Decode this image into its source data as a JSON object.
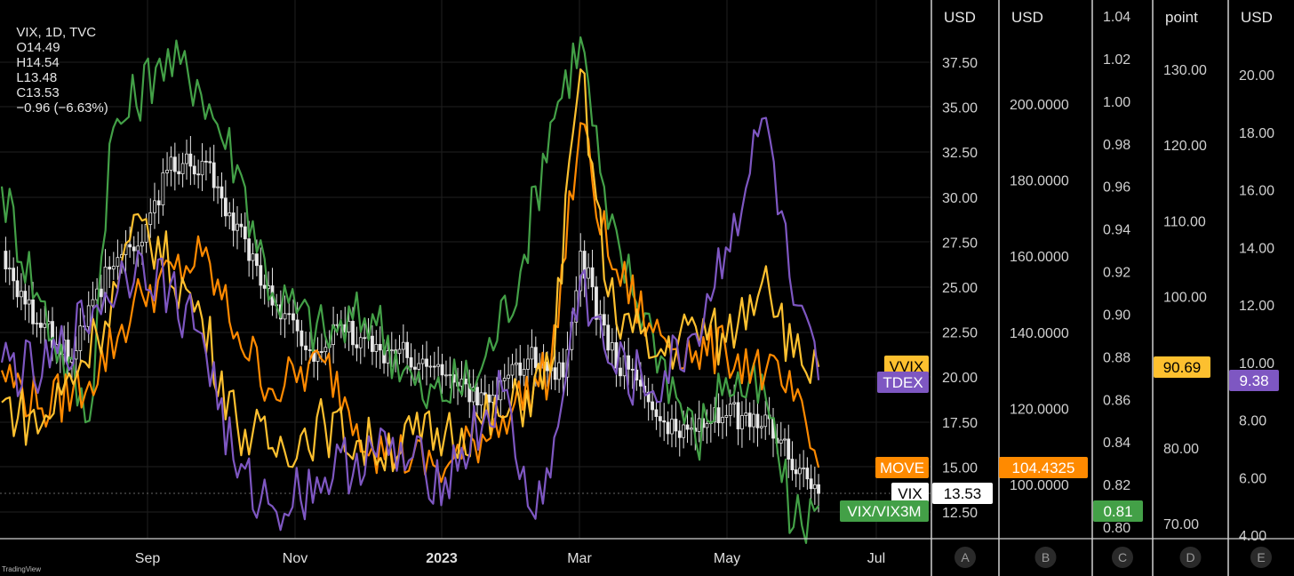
{
  "header": {
    "symbol": "VIX, 1D, TVC",
    "open": "O14.49",
    "high": "H14.54",
    "low": "L13.48",
    "close": "C13.53",
    "change": "−0.96 (−6.63%)"
  },
  "watermark": "TradingView",
  "colors": {
    "background": "#000000",
    "grid": "#1f1f1f",
    "vix": "#ffffff",
    "ratio": "#43a047",
    "move": "#ff8a00",
    "vvix": "#fdc02f",
    "tdex": "#7e57c2"
  },
  "scales": [
    {
      "id": "A",
      "unit": "USD",
      "ticks": [
        "37.50",
        "35.00",
        "32.50",
        "30.00",
        "27.50",
        "25.00",
        "22.50",
        "20.00",
        "17.50",
        "15.00",
        "12.50"
      ]
    },
    {
      "id": "B",
      "unit": "USD",
      "ticks": [
        "200.0000",
        "180.0000",
        "160.0000",
        "140.0000",
        "120.0000",
        "100.0000"
      ]
    },
    {
      "id": "C",
      "unit": "",
      "ticks": [
        "1.04",
        "1.02",
        "1.00",
        "0.98",
        "0.96",
        "0.94",
        "0.92",
        "0.90",
        "0.88",
        "0.86",
        "0.84",
        "0.82",
        "0.80"
      ]
    },
    {
      "id": "D",
      "unit": "point",
      "ticks": [
        "130.00",
        "120.00",
        "110.00",
        "100.00",
        "90.00",
        "80.00",
        "70.00"
      ]
    },
    {
      "id": "E",
      "unit": "USD",
      "ticks": [
        "20.00",
        "18.00",
        "16.00",
        "14.00",
        "12.00",
        "10.00",
        "8.00",
        "6.00",
        "4.00"
      ]
    }
  ],
  "tags": {
    "vvix_label": "VVIX",
    "tdex_label": "TDEX",
    "move_label": "MOVE",
    "vix_label": "VIX",
    "ratio_label": "VIX/VIX3M",
    "vix_value": "13.53",
    "move_value": "104.4325",
    "ratio_value": "0.81",
    "vvix_value": "90.69",
    "tdex_value": "9.38"
  },
  "chart_data": {
    "type": "line",
    "x_labels": [
      "Sep",
      "Nov",
      "2023",
      "Mar",
      "May",
      "Jul"
    ],
    "grid": true,
    "series": [
      {
        "name": "VIX",
        "axis": "A",
        "style": "candlestick",
        "x": [
          "2022-07-25",
          "2022-08-08",
          "2022-08-22",
          "2022-09-06",
          "2022-09-19",
          "2022-09-29",
          "2022-10-13",
          "2022-10-27",
          "2022-11-10",
          "2022-11-25",
          "2022-12-09",
          "2022-12-23",
          "2023-01-09",
          "2023-01-23",
          "2023-02-06",
          "2023-02-20",
          "2023-03-06",
          "2023-03-13",
          "2023-03-24",
          "2023-04-06",
          "2023-04-20",
          "2023-05-04",
          "2023-05-18",
          "2023-06-01",
          "2023-06-13",
          "2023-06-16"
        ],
        "values": [
          27.0,
          23.0,
          21.0,
          26.0,
          27.5,
          31.5,
          32.0,
          28.5,
          24.0,
          21.5,
          22.5,
          21.5,
          21.0,
          19.5,
          19.0,
          21.0,
          20.0,
          27.0,
          21.5,
          19.5,
          17.0,
          17.5,
          18.0,
          16.5,
          13.8,
          13.53
        ]
      },
      {
        "name": "VIX/VIX3M",
        "axis": "C",
        "values_x": [
          "2022-07-25",
          "2022-08-08",
          "2022-08-29",
          "2022-09-06",
          "2022-09-26",
          "2022-10-11",
          "2022-10-27",
          "2022-11-10",
          "2022-12-01",
          "2022-12-20",
          "2023-01-09",
          "2023-01-31",
          "2023-02-17",
          "2023-03-01",
          "2023-03-13",
          "2023-03-24",
          "2023-04-11",
          "2023-04-28",
          "2023-05-10",
          "2023-05-26",
          "2023-06-06",
          "2023-06-16"
        ],
        "values": [
          0.96,
          0.91,
          0.85,
          0.98,
          1.02,
          1.01,
          0.97,
          0.91,
          0.89,
          0.9,
          0.86,
          0.87,
          0.92,
          0.99,
          1.03,
          0.94,
          0.89,
          0.84,
          0.87,
          0.86,
          0.8,
          0.81
        ]
      },
      {
        "name": "MOVE",
        "axis": "B",
        "values_x": [
          "2022-07-25",
          "2022-08-10",
          "2022-08-29",
          "2022-09-19",
          "2022-10-13",
          "2022-10-27",
          "2022-11-10",
          "2022-12-01",
          "2022-12-20",
          "2023-01-18",
          "2023-02-10",
          "2023-03-01",
          "2023-03-13",
          "2023-03-24",
          "2023-04-11",
          "2023-04-28",
          "2023-05-10",
          "2023-05-26",
          "2023-06-06",
          "2023-06-16"
        ],
        "values": [
          130,
          120,
          127,
          150,
          160,
          140,
          125,
          132,
          110,
          104,
          118,
          130,
          195,
          160,
          140,
          135,
          135,
          130,
          122,
          104.4325
        ]
      },
      {
        "name": "VVIX",
        "axis": "D",
        "values_x": [
          "2022-07-25",
          "2022-08-10",
          "2022-09-01",
          "2022-09-19",
          "2022-10-13",
          "2022-10-27",
          "2022-11-10",
          "2022-12-01",
          "2022-12-20",
          "2023-01-18",
          "2023-02-10",
          "2023-03-01",
          "2023-03-13",
          "2023-03-24",
          "2023-04-11",
          "2023-04-28",
          "2023-05-10",
          "2023-05-26",
          "2023-06-06",
          "2023-06-16"
        ],
        "values": [
          86,
          83,
          95,
          110,
          97,
          83,
          80,
          83,
          80,
          82,
          84,
          90,
          130,
          100,
          92,
          96,
          94,
          104,
          92,
          90.69
        ]
      },
      {
        "name": "TDEX",
        "axis": "E",
        "values_x": [
          "2022-07-25",
          "2022-08-10",
          "2022-09-01",
          "2022-09-19",
          "2022-10-13",
          "2022-10-27",
          "2022-11-10",
          "2022-12-01",
          "2022-12-20",
          "2023-01-18",
          "2023-02-10",
          "2023-02-20",
          "2023-03-01",
          "2023-03-13",
          "2023-03-24",
          "2023-04-11",
          "2023-04-28",
          "2023-05-10",
          "2023-05-26",
          "2023-06-06",
          "2023-06-16"
        ],
        "values": [
          10,
          9.5,
          12,
          13.7,
          11,
          6,
          5,
          6,
          7,
          6,
          9,
          5,
          6,
          13,
          10,
          9,
          11,
          14,
          18.5,
          12,
          9.38
        ]
      }
    ]
  }
}
